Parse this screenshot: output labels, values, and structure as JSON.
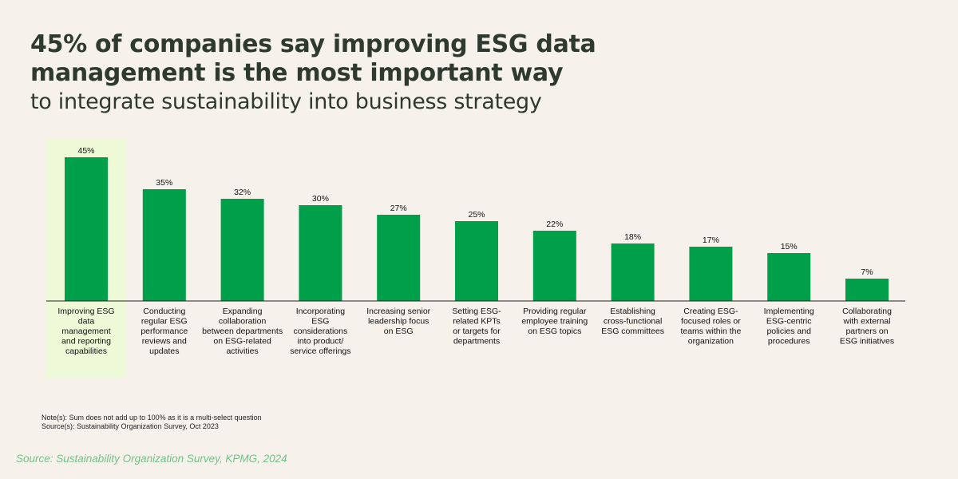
{
  "header": {
    "title_line1": "45% of companies say improving ESG data",
    "title_line2": "management is the most important way",
    "subtitle": "to integrate sustainability into business strategy"
  },
  "colors": {
    "bar": "#00a04b",
    "highlight": "#eefad7",
    "background": "#f6f1ea",
    "title": "#2f3a2f",
    "source": "#74c28a"
  },
  "chart_data": {
    "type": "bar",
    "title": "",
    "xlabel": "",
    "ylabel": "",
    "ylim": [
      0,
      50
    ],
    "value_suffix": "%",
    "highlight_index": 0,
    "categories": [
      "Improving ESG data management and reporting capabilities",
      "Conducting regular ESG performance reviews and updates",
      "Expanding collaboration between departments on ESG-related activities",
      "Incorporating ESG considerations into product/ service offerings",
      "Increasing senior leadership focus on ESG",
      "Setting ESG-related KPTs or targets for departments",
      "Providing regular employee training on ESG topics",
      "Establishing cross-functional ESG committees",
      "Creating ESG-focused roles or teams within the organization",
      "Implementing ESG-centric policies and procedures",
      "Collaborating with external partners on ESG initiatives"
    ],
    "category_lines": [
      [
        "Improving ESG",
        "data",
        "management",
        "and reporting",
        "capabilities"
      ],
      [
        "Conducting",
        "regular ESG",
        "performance",
        "reviews and",
        "updates"
      ],
      [
        "Expanding",
        "collaboration",
        "between departments",
        "on ESG-related",
        "activities"
      ],
      [
        "Incorporating",
        "ESG",
        "considerations",
        "into product/",
        "service offerings"
      ],
      [
        "Increasing senior",
        "leadership focus",
        "on ESG"
      ],
      [
        "Setting ESG-",
        "related KPTs",
        "or targets for",
        "departments"
      ],
      [
        "Providing regular",
        "employee training",
        "on ESG topics"
      ],
      [
        "Establishing",
        "cross-functional",
        "ESG committees"
      ],
      [
        "Creating ESG-",
        "focused roles or",
        "teams within the",
        "organization"
      ],
      [
        "Implementing",
        "ESG-centric",
        "policies and",
        "procedures"
      ],
      [
        "Collaborating",
        "with external",
        "partners on",
        "ESG initiatives"
      ]
    ],
    "values": [
      45,
      35,
      32,
      30,
      27,
      25,
      22,
      18,
      17,
      15,
      7
    ]
  },
  "footer": {
    "note": "Note(s): Sum does not add up to 100% as it is a multi-select question",
    "source_line": "Source(s): Sustainability Organization Survey, Oct 2023",
    "credit": "Source: Sustainability Organization Survey, KPMG, 2024"
  }
}
